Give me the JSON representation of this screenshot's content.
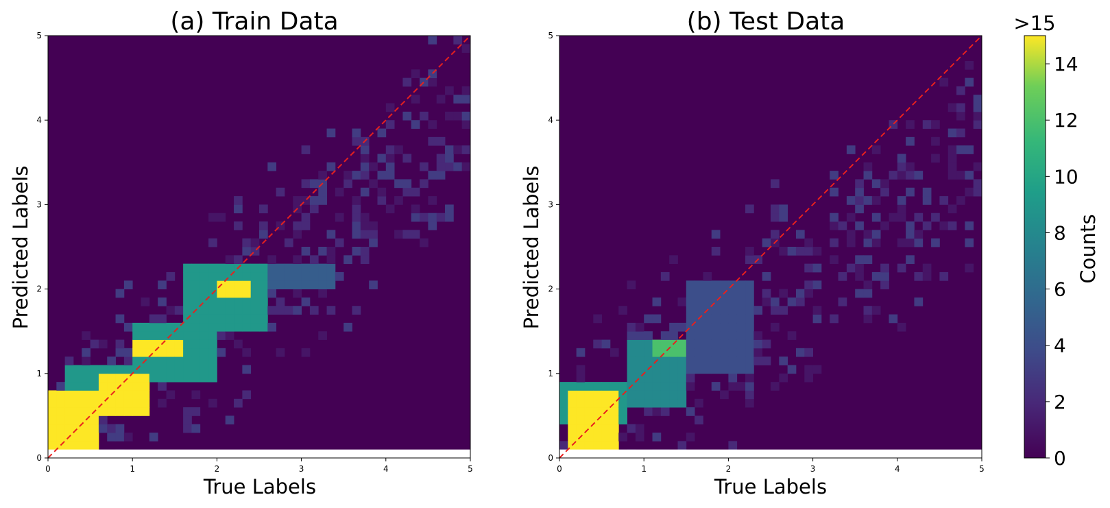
{
  "chart_data": [
    {
      "type": "heatmap",
      "title": "(a) Train Data",
      "xlabel": "True Labels",
      "ylabel": "Predicted Labels",
      "xlim": [
        0,
        5
      ],
      "ylim": [
        0,
        5
      ],
      "xticks": [
        "0",
        "1",
        "2",
        "3",
        "4",
        "5"
      ],
      "yticks": [
        "0",
        "1",
        "2",
        "3",
        "4",
        "5"
      ],
      "bins": 50,
      "reference_line": "y = x (red dashed)",
      "dense_regions": [
        {
          "x": [
            0.0,
            0.6
          ],
          "y": [
            0.1,
            0.8
          ],
          "count": 15
        },
        {
          "x": [
            0.6,
            1.2
          ],
          "y": [
            0.5,
            1.0
          ],
          "count": 15
        },
        {
          "x": [
            1.0,
            1.6
          ],
          "y": [
            1.2,
            1.4
          ],
          "count": 15
        },
        {
          "x": [
            2.0,
            2.4
          ],
          "y": [
            1.9,
            2.1
          ],
          "count": 15
        },
        {
          "x": [
            0.2,
            1.0
          ],
          "y": [
            0.7,
            1.1
          ],
          "count": 9
        },
        {
          "x": [
            1.0,
            2.0
          ],
          "y": [
            0.9,
            1.6
          ],
          "count": 9
        },
        {
          "x": [
            1.6,
            2.6
          ],
          "y": [
            1.5,
            2.3
          ],
          "count": 9
        },
        {
          "x": [
            2.3,
            3.4
          ],
          "y": [
            2.0,
            2.3
          ],
          "count": 5
        }
      ]
    },
    {
      "type": "heatmap",
      "title": "(b) Test Data",
      "xlabel": "True Labels",
      "ylabel": "Predicted Labels",
      "xlim": [
        0,
        5
      ],
      "ylim": [
        0,
        5
      ],
      "xticks": [
        "0",
        "1",
        "2",
        "3",
        "4",
        "5"
      ],
      "yticks": [
        "0",
        "1",
        "2",
        "3",
        "4",
        "5"
      ],
      "bins": 50,
      "reference_line": "y = x (red dashed)",
      "dense_regions": [
        {
          "x": [
            0.1,
            0.7
          ],
          "y": [
            0.1,
            0.8
          ],
          "count": 15
        },
        {
          "x": [
            0.0,
            0.8
          ],
          "y": [
            0.4,
            0.9
          ],
          "count": 9
        },
        {
          "x": [
            0.8,
            1.5
          ],
          "y": [
            0.6,
            1.4
          ],
          "count": 8
        },
        {
          "x": [
            1.1,
            1.5
          ],
          "y": [
            1.2,
            1.4
          ],
          "count": 12
        },
        {
          "x": [
            1.5,
            2.3
          ],
          "y": [
            1.0,
            2.1
          ],
          "count": 4
        }
      ]
    }
  ],
  "colorbar": {
    "label": "Counts",
    "top_label": ">15",
    "ticks": [
      "0",
      "2",
      "4",
      "6",
      "8",
      "10",
      "12",
      "14"
    ],
    "range": [
      0,
      15
    ],
    "colormap": "viridis"
  },
  "colors": {
    "background": "#440154",
    "reference_line": "#e8201e",
    "max": "#fde725"
  }
}
